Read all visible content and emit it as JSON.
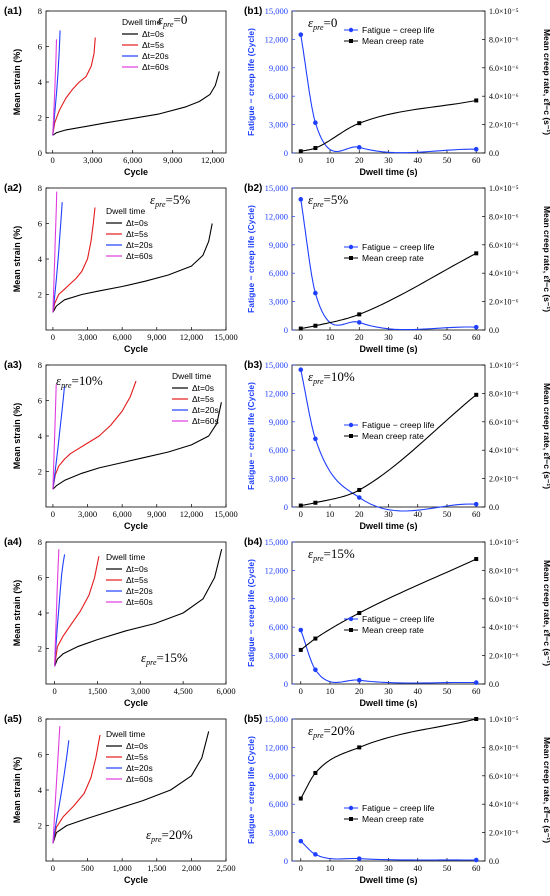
{
  "colors": {
    "c0": "#000000",
    "c5": "#e41a1c",
    "c20": "#1f3fff",
    "c60": "#e03ce0",
    "life": "#1f3fff",
    "rate": "#000000"
  },
  "left_common": {
    "ylabel": "Mean strain (%)",
    "xlabel": "Cycle",
    "legend_title": "Dwell time",
    "legend_labels": [
      "Δt=0s",
      "Δt=5s",
      "Δt=20s",
      "Δt=60s"
    ]
  },
  "right_common": {
    "xlabel": "Dwell time (s)",
    "ylabel_left": "Fatigue − creep life (Cycle)",
    "ylabel_right": "Mean creep rate, ε̇f−c (s⁻¹)",
    "legend_life": "Fatigue − creep life",
    "legend_rate": "Mean creep rate",
    "yticks_left": [
      "0",
      "3,000",
      "6,000",
      "9,000",
      "12,000",
      "15,000"
    ],
    "yticks_right": [
      "0.0",
      "2.0×10⁻⁶",
      "4.0×10⁻⁶",
      "6.0×10⁻⁶",
      "8.0×10⁻⁶",
      "1.0×10⁻⁵"
    ],
    "xticks": [
      "0",
      "10",
      "20",
      "30",
      "40",
      "50",
      "60"
    ]
  },
  "panels": [
    {
      "a_label": "(a1)",
      "b_label": "(b1)",
      "pre": "ε",
      "pre_sub": "pre",
      "pre_val": "=0"
    },
    {
      "a_label": "(a2)",
      "b_label": "(b2)",
      "pre": "ε",
      "pre_sub": "pre",
      "pre_val": "=5%"
    },
    {
      "a_label": "(a3)",
      "b_label": "(b3)",
      "pre": "ε",
      "pre_sub": "pre",
      "pre_val": "=10%"
    },
    {
      "a_label": "(a4)",
      "b_label": "(b4)",
      "pre": "ε",
      "pre_sub": "pre",
      "pre_val": "=15%"
    },
    {
      "a_label": "(a5)",
      "b_label": "(b5)",
      "pre": "ε",
      "pre_sub": "pre",
      "pre_val": "=20%"
    }
  ],
  "chart_data": [
    {
      "type": "line",
      "panel": "a1",
      "xlabel": "Cycle",
      "ylabel": "Mean strain (%)",
      "xlim": [
        -500,
        13000
      ],
      "ylim": [
        0,
        8
      ],
      "xticks": [
        0,
        3000,
        6000,
        9000,
        12000
      ],
      "xtick_labels": [
        "0",
        "3,000",
        "6,000",
        "9,000",
        "12,000"
      ],
      "yticks": [
        0,
        2,
        4,
        6,
        8
      ],
      "ytick_labels": [
        "0",
        "2",
        "4",
        "6",
        "8"
      ],
      "legend": "upper-left",
      "series": [
        {
          "name": "Δt=0s",
          "color": "#000000",
          "x": [
            0,
            300,
            1000,
            2500,
            4000,
            6000,
            8000,
            10000,
            11000,
            11800,
            12200,
            12500
          ],
          "y": [
            1.0,
            1.15,
            1.3,
            1.5,
            1.7,
            1.95,
            2.2,
            2.6,
            2.9,
            3.3,
            3.8,
            4.6
          ]
        },
        {
          "name": "Δt=5s",
          "color": "#e41a1c",
          "x": [
            0,
            150,
            500,
            1000,
            1500,
            2000,
            2500,
            2900,
            3100,
            3200
          ],
          "y": [
            1.0,
            1.7,
            2.4,
            3.1,
            3.6,
            4.0,
            4.3,
            4.9,
            5.6,
            6.5
          ]
        },
        {
          "name": "Δt=20s",
          "color": "#1f3fff",
          "x": [
            0,
            100,
            200,
            300,
            400,
            500,
            560
          ],
          "y": [
            1.0,
            1.8,
            2.6,
            3.5,
            4.5,
            5.8,
            6.9
          ]
        },
        {
          "name": "Δt=60s",
          "color": "#e03ce0",
          "x": [
            0,
            60,
            120,
            180,
            240,
            290
          ],
          "y": [
            1.0,
            1.9,
            2.9,
            4.0,
            5.2,
            6.4
          ]
        }
      ]
    },
    {
      "type": "line+scatter",
      "panel": "b1",
      "xlabel": "Dwell time (s)",
      "ylabel": "Fatigue − creep life (Cycle)",
      "ylabel_right": "Mean creep rate, ε̇f−c (s⁻¹)",
      "xlim": [
        -3,
        63
      ],
      "ylim": [
        0,
        15000
      ],
      "ylim_right": [
        0,
        1e-05
      ],
      "legend": "center",
      "life": {
        "name": "Fatigue − creep life",
        "x": [
          0,
          5,
          20,
          60
        ],
        "y": [
          12500,
          3200,
          600,
          400
        ]
      },
      "rate": {
        "name": "Mean creep rate",
        "x": [
          0,
          5,
          20,
          60
        ],
        "y": [
          1.2e-07,
          3.5e-07,
          2.1e-06,
          3.7e-06
        ]
      }
    },
    {
      "type": "line",
      "panel": "a2",
      "xlabel": "Cycle",
      "ylabel": "Mean strain (%)",
      "xlim": [
        -600,
        15000
      ],
      "ylim": [
        0,
        8
      ],
      "xticks": [
        0,
        3000,
        6000,
        9000,
        12000,
        15000
      ],
      "xtick_labels": [
        "0",
        "3,000",
        "6,000",
        "9,000",
        "12,000",
        "15,000"
      ],
      "yticks": [
        2,
        4,
        6,
        8
      ],
      "ytick_labels": [
        "2",
        "4",
        "6",
        "8"
      ],
      "legend": "upper-left",
      "series": [
        {
          "name": "Δt=0s",
          "color": "#000000",
          "x": [
            0,
            300,
            1000,
            2500,
            4000,
            6000,
            8000,
            10000,
            12000,
            13000,
            13500,
            13800
          ],
          "y": [
            1.0,
            1.35,
            1.7,
            2.0,
            2.2,
            2.45,
            2.75,
            3.1,
            3.6,
            4.2,
            5.0,
            6.0
          ]
        },
        {
          "name": "Δt=5s",
          "color": "#e41a1c",
          "x": [
            0,
            150,
            500,
            1000,
            1500,
            2000,
            2500,
            3000,
            3300,
            3500,
            3650
          ],
          "y": [
            1.0,
            1.5,
            2.0,
            2.3,
            2.6,
            2.9,
            3.3,
            4.0,
            5.0,
            6.0,
            6.9
          ]
        },
        {
          "name": "Δt=20s",
          "color": "#1f3fff",
          "x": [
            0,
            100,
            200,
            300,
            400,
            500,
            600,
            700,
            800
          ],
          "y": [
            1.0,
            1.6,
            2.2,
            2.9,
            3.6,
            4.4,
            5.3,
            6.2,
            7.2
          ]
        },
        {
          "name": "Δt=60s",
          "color": "#e03ce0",
          "x": [
            0,
            50,
            100,
            150,
            200,
            250,
            300,
            330
          ],
          "y": [
            1.0,
            2.0,
            3.0,
            4.0,
            5.0,
            6.0,
            7.0,
            7.8
          ]
        }
      ]
    },
    {
      "type": "line+scatter",
      "panel": "b2",
      "xlabel": "Dwell time (s)",
      "ylabel": "Fatigue − creep life (Cycle)",
      "ylabel_right": "Mean creep rate, ε̇f−c (s⁻¹)",
      "xlim": [
        -3,
        63
      ],
      "ylim": [
        0,
        15000
      ],
      "ylim_right": [
        0,
        1e-05
      ],
      "legend": "center",
      "life": {
        "name": "Fatigue − creep life",
        "x": [
          0,
          5,
          20,
          60
        ],
        "y": [
          13800,
          3900,
          800,
          300
        ]
      },
      "rate": {
        "name": "Mean creep rate",
        "x": [
          0,
          5,
          20,
          60
        ],
        "y": [
          1e-07,
          3e-07,
          1.1e-06,
          5.4e-06
        ]
      }
    },
    {
      "type": "line",
      "panel": "a3",
      "xlabel": "Cycle",
      "ylabel": "Mean strain (%)",
      "xlim": [
        -600,
        15000
      ],
      "ylim": [
        0,
        8
      ],
      "xticks": [
        0,
        3000,
        6000,
        9000,
        12000,
        15000
      ],
      "xtick_labels": [
        "0",
        "3,000",
        "6,000",
        "9,000",
        "12,000",
        "15,000"
      ],
      "yticks": [
        2,
        4,
        6,
        8
      ],
      "ytick_labels": [
        "2",
        "4",
        "6",
        "8"
      ],
      "legend": "upper-right",
      "series": [
        {
          "name": "Δt=0s",
          "color": "#000000",
          "x": [
            0,
            300,
            1000,
            2500,
            4000,
            6000,
            8000,
            10000,
            12000,
            13500,
            14200,
            14600
          ],
          "y": [
            1.0,
            1.2,
            1.5,
            1.9,
            2.2,
            2.5,
            2.8,
            3.1,
            3.5,
            4.0,
            4.7,
            5.9
          ]
        },
        {
          "name": "Δt=5s",
          "color": "#e41a1c",
          "x": [
            0,
            200,
            500,
            1000,
            1500,
            2000,
            3000,
            4000,
            5000,
            6000,
            6700,
            7200
          ],
          "y": [
            1.0,
            1.8,
            2.3,
            2.7,
            3.0,
            3.2,
            3.6,
            4.0,
            4.6,
            5.4,
            6.2,
            7.1
          ]
        },
        {
          "name": "Δt=20s",
          "color": "#1f3fff",
          "x": [
            0,
            150,
            300,
            450,
            600,
            750,
            900,
            1000
          ],
          "y": [
            1.0,
            1.8,
            2.6,
            3.4,
            4.3,
            5.2,
            6.1,
            6.8
          ]
        },
        {
          "name": "Δt=60s",
          "color": "#e03ce0",
          "x": [
            0,
            60,
            120,
            180,
            240,
            280
          ],
          "y": [
            1.0,
            2.2,
            3.4,
            4.6,
            5.9,
            6.9
          ]
        }
      ]
    },
    {
      "type": "line+scatter",
      "panel": "b3",
      "xlabel": "Dwell time (s)",
      "ylabel": "Fatigue − creep life (Cycle)",
      "ylabel_right": "Mean creep rate, ε̇f−c (s⁻¹)",
      "xlim": [
        -3,
        63
      ],
      "ylim": [
        0,
        15000
      ],
      "ylim_right": [
        0,
        1e-05
      ],
      "legend": "center",
      "life": {
        "name": "Fatigue − creep life",
        "x": [
          0,
          5,
          20,
          60
        ],
        "y": [
          14500,
          7200,
          1000,
          300
        ]
      },
      "rate": {
        "name": "Mean creep rate",
        "x": [
          0,
          5,
          20,
          60
        ],
        "y": [
          1e-07,
          3e-07,
          1.2e-06,
          7.9e-06
        ]
      }
    },
    {
      "type": "line",
      "panel": "a4",
      "xlabel": "Cycle",
      "ylabel": "Mean strain (%)",
      "xlim": [
        -300,
        6000
      ],
      "ylim": [
        0,
        8
      ],
      "xticks": [
        0,
        1500,
        3000,
        4500,
        6000
      ],
      "xtick_labels": [
        "0",
        "1,500",
        "3,000",
        "4,500",
        "6,000"
      ],
      "yticks": [
        2,
        4,
        6,
        8
      ],
      "ytick_labels": [
        "2",
        "4",
        "6",
        "8"
      ],
      "legend": "upper-left",
      "series": [
        {
          "name": "Δt=0s",
          "color": "#000000",
          "x": [
            0,
            100,
            300,
            800,
            1500,
            2500,
            3500,
            4500,
            5200,
            5600,
            5850
          ],
          "y": [
            1.0,
            1.4,
            1.7,
            2.1,
            2.5,
            3.0,
            3.4,
            4.0,
            4.8,
            6.0,
            7.6
          ]
        },
        {
          "name": "Δt=5s",
          "color": "#e41a1c",
          "x": [
            0,
            100,
            300,
            600,
            900,
            1200,
            1400,
            1550
          ],
          "y": [
            1.0,
            2.1,
            2.7,
            3.4,
            4.1,
            5.0,
            6.0,
            7.2
          ]
        },
        {
          "name": "Δt=20s",
          "color": "#1f3fff",
          "x": [
            0,
            50,
            100,
            150,
            200,
            250,
            300,
            350
          ],
          "y": [
            1.0,
            2.2,
            3.3,
            4.3,
            5.3,
            6.2,
            6.8,
            7.3
          ]
        },
        {
          "name": "Δt=60s",
          "color": "#e03ce0",
          "x": [
            0,
            30,
            60,
            90,
            120,
            150
          ],
          "y": [
            1.0,
            2.4,
            3.8,
            5.2,
            6.5,
            7.6
          ]
        }
      ]
    },
    {
      "type": "line+scatter",
      "panel": "b4",
      "xlabel": "Dwell time (s)",
      "ylabel": "Fatigue − creep life (Cycle)",
      "ylabel_right": "Mean creep rate, ε̇f−c (s⁻¹)",
      "xlim": [
        -3,
        63
      ],
      "ylim": [
        0,
        15000
      ],
      "ylim_right": [
        0,
        1e-05
      ],
      "legend": "center",
      "life": {
        "name": "Fatigue − creep life",
        "x": [
          0,
          5,
          20,
          60
        ],
        "y": [
          5700,
          1500,
          400,
          150
        ]
      },
      "rate": {
        "name": "Mean creep rate",
        "x": [
          0,
          5,
          20,
          60
        ],
        "y": [
          2.4e-06,
          3.2e-06,
          5e-06,
          8.8e-06
        ]
      }
    },
    {
      "type": "line",
      "panel": "a5",
      "xlabel": "Cycle",
      "ylabel": "Mean strain (%)",
      "xlim": [
        -100,
        2500
      ],
      "ylim": [
        0,
        8
      ],
      "xticks": [
        0,
        500,
        1000,
        1500,
        2000,
        2500
      ],
      "xtick_labels": [
        "0",
        "500",
        "1,000",
        "1,500",
        "2,000",
        "2,500"
      ],
      "yticks": [
        2,
        4,
        6,
        8
      ],
      "ytick_labels": [
        "2",
        "4",
        "6",
        "8"
      ],
      "legend": "upper-left",
      "series": [
        {
          "name": "Δt=0s",
          "color": "#000000",
          "x": [
            0,
            50,
            200,
            500,
            900,
            1300,
            1700,
            2000,
            2150,
            2250
          ],
          "y": [
            1.0,
            1.6,
            2.0,
            2.4,
            2.9,
            3.4,
            4.0,
            4.8,
            5.8,
            7.3
          ]
        },
        {
          "name": "Δt=5s",
          "color": "#e41a1c",
          "x": [
            0,
            50,
            150,
            300,
            450,
            550,
            620,
            680
          ],
          "y": [
            1.0,
            1.9,
            2.5,
            3.1,
            3.8,
            4.7,
            5.8,
            7.1
          ]
        },
        {
          "name": "Δt=20s",
          "color": "#1f3fff",
          "x": [
            0,
            40,
            80,
            120,
            160,
            200,
            230
          ],
          "y": [
            1.0,
            2.0,
            2.9,
            3.8,
            4.8,
            5.9,
            6.8
          ]
        },
        {
          "name": "Δt=60s",
          "color": "#e03ce0",
          "x": [
            0,
            20,
            40,
            60,
            80,
            100
          ],
          "y": [
            1.0,
            2.3,
            3.7,
            5.0,
            6.3,
            7.6
          ]
        }
      ]
    },
    {
      "type": "line+scatter",
      "panel": "b5",
      "xlabel": "Dwell time (s)",
      "ylabel": "Fatigue − creep life (Cycle)",
      "ylabel_right": "Mean creep rate, ε̇f−c (s⁻¹)",
      "xlim": [
        -3,
        63
      ],
      "ylim": [
        0,
        15000
      ],
      "ylim_right": [
        0,
        1e-05
      ],
      "legend": "center",
      "life": {
        "name": "Fatigue − creep life",
        "x": [
          0,
          5,
          20,
          60
        ],
        "y": [
          2100,
          700,
          250,
          100
        ]
      },
      "rate": {
        "name": "Mean creep rate",
        "x": [
          0,
          5,
          20,
          60
        ],
        "y": [
          4.4e-06,
          6.2e-06,
          8e-06,
          1e-05
        ]
      }
    }
  ]
}
